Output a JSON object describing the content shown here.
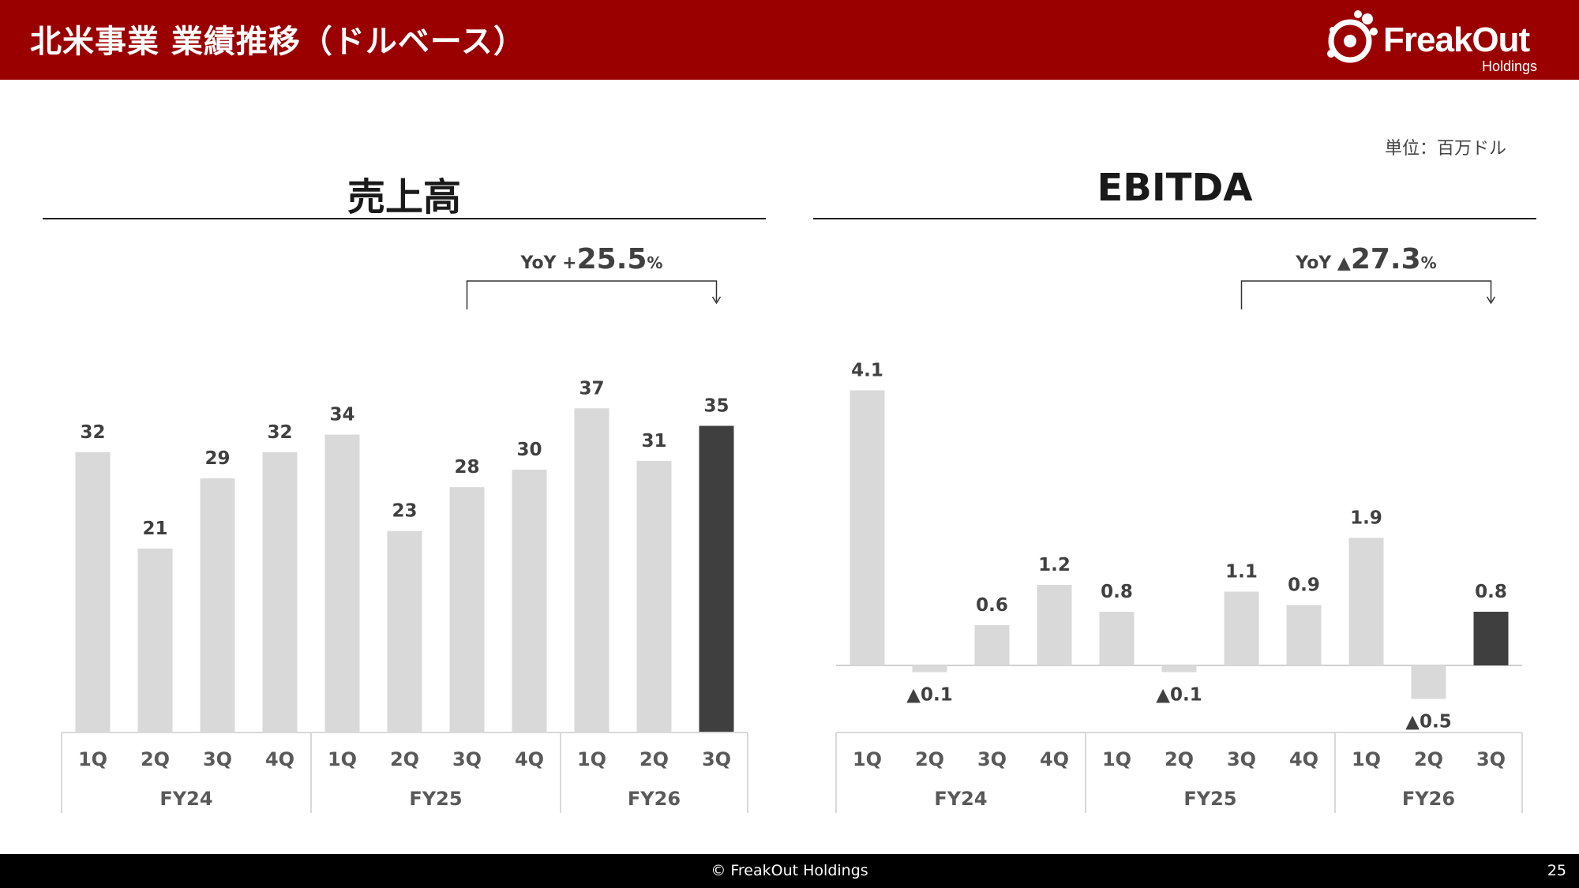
{
  "header": {
    "title": "北米事業 業績推移（ドルベース）",
    "logo_text": "FreakOut",
    "logo_subtext": "Holdings"
  },
  "unit_label": "単位：百万ドル",
  "colors": {
    "header_bg": "#9b0000",
    "bar_default": "#d9d9d9",
    "bar_highlight": "#3f3f3f"
  },
  "footer": {
    "copyright": "© FreakOut Holdings",
    "page_number": "25"
  },
  "chart_data": [
    {
      "type": "bar",
      "title": "売上高",
      "categories": [
        "1Q",
        "2Q",
        "3Q",
        "4Q",
        "1Q",
        "2Q",
        "3Q",
        "4Q",
        "1Q",
        "2Q",
        "3Q"
      ],
      "groups": [
        {
          "label": "FY24",
          "count": 4
        },
        {
          "label": "FY25",
          "count": 4
        },
        {
          "label": "FY26",
          "count": 3
        }
      ],
      "values": [
        32,
        21,
        29,
        32,
        34,
        23,
        28,
        30,
        37,
        31,
        35
      ],
      "labels": [
        "32",
        "21",
        "29",
        "32",
        "34",
        "23",
        "28",
        "30",
        "37",
        "31",
        "35"
      ],
      "highlight_index": 10,
      "annotation": {
        "prefix": "YoY ",
        "sign": "+",
        "value": "25.5",
        "suffix": "%",
        "from_index": 6,
        "to_index": 10
      },
      "ylim": [
        0,
        40
      ]
    },
    {
      "type": "bar",
      "title": "EBITDA",
      "categories": [
        "1Q",
        "2Q",
        "3Q",
        "4Q",
        "1Q",
        "2Q",
        "3Q",
        "4Q",
        "1Q",
        "2Q",
        "3Q"
      ],
      "groups": [
        {
          "label": "FY24",
          "count": 4
        },
        {
          "label": "FY25",
          "count": 4
        },
        {
          "label": "FY26",
          "count": 3
        }
      ],
      "values": [
        4.1,
        -0.1,
        0.6,
        1.2,
        0.8,
        -0.1,
        1.1,
        0.9,
        1.9,
        -0.5,
        0.8
      ],
      "labels": [
        "4.1",
        "▲0.1",
        "0.6",
        "1.2",
        "0.8",
        "▲0.1",
        "1.1",
        "0.9",
        "1.9",
        "▲0.5",
        "0.8"
      ],
      "highlight_index": 10,
      "annotation": {
        "prefix": "YoY ",
        "sign": "▲",
        "value": "27.3",
        "suffix": "%",
        "from_index": 6,
        "to_index": 10
      },
      "ylim": [
        -0.5,
        4.1
      ]
    }
  ]
}
